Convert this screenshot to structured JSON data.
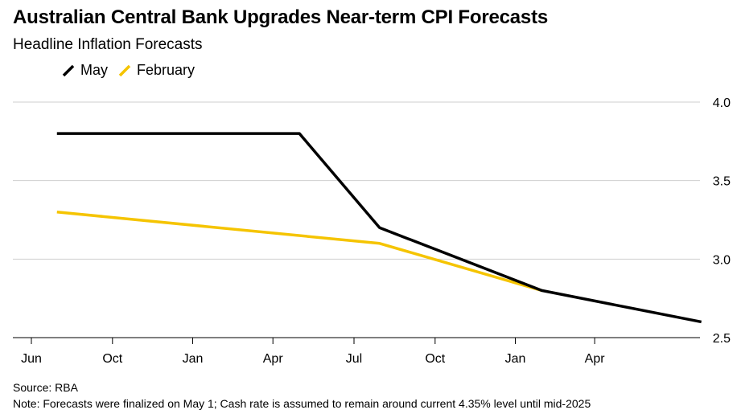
{
  "title": "Australian Central Bank Upgrades Near-term CPI Forecasts",
  "subtitle": "Headline Inflation Forecasts",
  "source": "Source: RBA",
  "note": "Note: Forecasts were finalized on May 1; Cash rate is assumed to remain around current 4.35% level until mid-2025",
  "colors": {
    "may": "#000000",
    "february": "#f5c400",
    "grid": "#cfcfcf",
    "axis": "#000000"
  },
  "chart_data": {
    "type": "line",
    "title": "Australian Central Bank Upgrades Near-term CPI Forecasts",
    "subtitle": "Headline Inflation Forecasts",
    "xlabel": "",
    "ylabel": "",
    "x_ticks": [
      "Jun",
      "Oct",
      "Jan",
      "Apr",
      "Jul",
      "Oct",
      "Jan",
      "Apr"
    ],
    "ylim": [
      2.5,
      4.0
    ],
    "y_ticks": [
      "2.5",
      "3.0",
      "3.5",
      "4.0"
    ],
    "grid": true,
    "legend_position": "top-left",
    "series": [
      {
        "name": "May",
        "color": "#000000",
        "points": [
          {
            "x": "2023-06-30",
            "y": 3.8
          },
          {
            "x": "2024-03-31",
            "y": 3.8
          },
          {
            "x": "2024-06-30",
            "y": 3.2
          },
          {
            "x": "2024-12-31",
            "y": 2.8
          },
          {
            "x": "2025-06-30",
            "y": 2.6
          }
        ]
      },
      {
        "name": "February",
        "color": "#f5c400",
        "points": [
          {
            "x": "2023-06-30",
            "y": 3.3
          },
          {
            "x": "2024-06-30",
            "y": 3.1
          },
          {
            "x": "2024-12-31",
            "y": 2.8
          }
        ]
      }
    ]
  }
}
